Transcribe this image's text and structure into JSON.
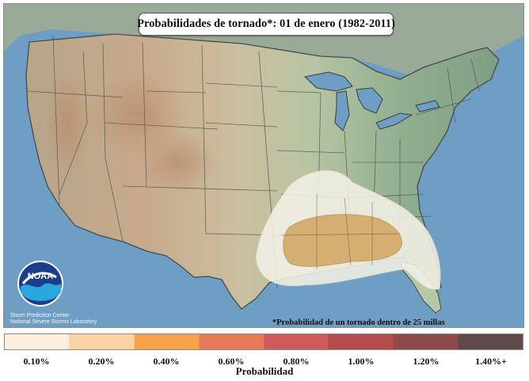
{
  "map": {
    "title": "Probabilidades de tornado*: 01 de enero (1982-2011)",
    "footnote": "*Probabilidad de un tornado dentro de 25 millas",
    "credit": [
      "Storm Prediction Center",
      "National Severe Storms Laboratory"
    ],
    "logo_text": "NOAA",
    "region": "Contiguous United States",
    "highlight_area": "Southeastern US (Gulf Coast states)"
  },
  "legend": {
    "title": "Probabilidad",
    "ticks": [
      "0.10%",
      "0.20%",
      "0.40%",
      "0.60%",
      "0.80%",
      "1.00%",
      "1.20%",
      "1.40%+"
    ],
    "colors": [
      "#fdeede",
      "#fbd2a4",
      "#f6a24b",
      "#e67a58",
      "#cf5a5b",
      "#b64b4c",
      "#8c4a48",
      "#5e4a48"
    ]
  },
  "probability_zones": [
    {
      "level": "0.10%",
      "color": "#f3f1e6"
    },
    {
      "level": "0.20%",
      "color": "#d4a96a"
    }
  ]
}
